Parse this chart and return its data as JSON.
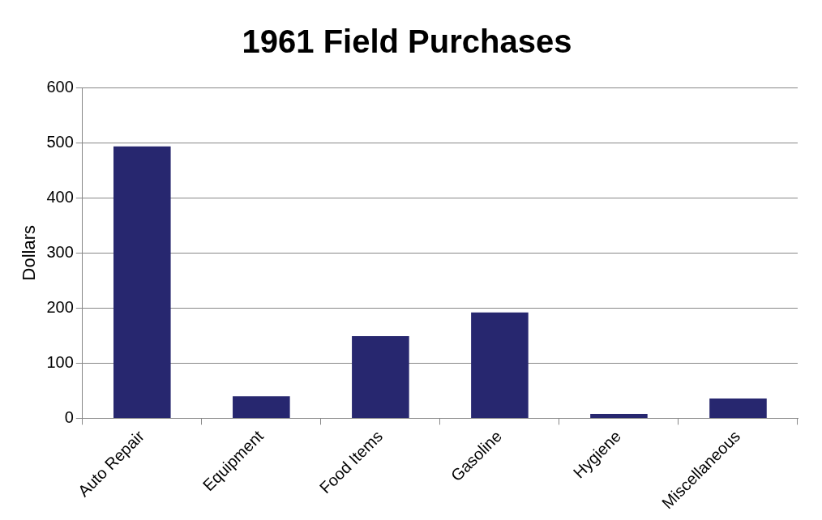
{
  "chart_data": {
    "type": "bar",
    "title": "1961 Field Purchases",
    "ylabel": "Dollars",
    "categories": [
      "Auto Repair",
      "Equipment",
      "Food Items",
      "Gasoline",
      "Hygiene",
      "Miscellaneous"
    ],
    "values": [
      493,
      40,
      149,
      192,
      8,
      36
    ],
    "color": "#27276f",
    "ylim": [
      0,
      600
    ],
    "yticks": [
      0,
      100,
      200,
      300,
      400,
      500,
      600
    ],
    "grid": "y",
    "legend": false
  }
}
